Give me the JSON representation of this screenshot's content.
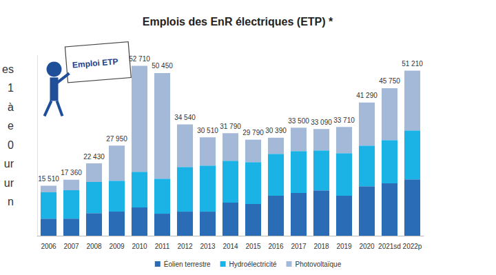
{
  "chart_data": {
    "type": "bar",
    "title": "Emplois des EnR électriques (ETP) *",
    "categories": [
      "2006",
      "2007",
      "2008",
      "2009",
      "2010",
      "2011",
      "2012",
      "2013",
      "2014",
      "2015",
      "2016",
      "2017",
      "2018",
      "2019",
      "2020",
      "2021sd",
      "2022p"
    ],
    "series": [
      {
        "name": "Éolien terrestre",
        "color": "#2a6db6",
        "values": [
          5300,
          5300,
          7000,
          7500,
          8750,
          6830,
          7470,
          7470,
          10240,
          9820,
          12380,
          13230,
          14080,
          12380,
          15360,
          16220,
          17500
        ]
      },
      {
        "name": "Hydroélectricité",
        "color": "#1bb3e6",
        "values": [
          8150,
          8800,
          9650,
          9570,
          11100,
          10870,
          13870,
          14300,
          13020,
          13010,
          13010,
          13020,
          12380,
          13230,
          12590,
          13440,
          15150
        ]
      },
      {
        "name": "Photovoltaïque",
        "color": "#a4b9d8",
        "values": [
          2060,
          3260,
          5780,
          10880,
          32860,
          32750,
          13200,
          8740,
          8530,
          6960,
          5000,
          7250,
          6630,
          8100,
          13340,
          16090,
          18560
        ]
      }
    ],
    "totals": [
      15510,
      17360,
      22430,
      27950,
      52710,
      50450,
      34540,
      30510,
      31790,
      29790,
      30390,
      33500,
      33090,
      33710,
      41290,
      45750,
      51210
    ],
    "total_labels": [
      "15 510",
      "17 360",
      "22 430",
      "27 950",
      "52 710",
      "50 450",
      "34 540",
      "30 510",
      "31 790",
      "29 790",
      "30 390",
      "33 500",
      "33 090",
      "33 710",
      "41 290",
      "45 750",
      "51 210"
    ],
    "stacked": true,
    "ylim": [
      0,
      56000
    ],
    "grid": false,
    "tick_labels": "x",
    "legend": "bottom",
    "annotations": {
      "sign": "Emploi ETP",
      "margin_text": [
        "es",
        "1",
        "à",
        "e",
        "0",
        "ur",
        "ur",
        "n"
      ]
    }
  }
}
